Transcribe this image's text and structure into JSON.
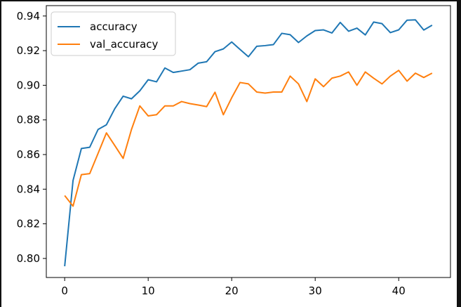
{
  "chart_data": {
    "type": "line",
    "title": "",
    "xlabel": "",
    "ylabel": "",
    "xlim": [
      -2.2,
      46.2
    ],
    "ylim": [
      0.789,
      0.946
    ],
    "x_ticks": [
      0,
      10,
      20,
      30,
      40
    ],
    "y_ticks": [
      0.8,
      0.82,
      0.84,
      0.86,
      0.88,
      0.9,
      0.92,
      0.94
    ],
    "y_tick_labels": [
      "0.80",
      "0.82",
      "0.84",
      "0.86",
      "0.88",
      "0.90",
      "0.92",
      "0.94"
    ],
    "grid": false,
    "legend_position": "upper-left",
    "x": [
      0,
      1,
      2,
      3,
      4,
      5,
      6,
      7,
      8,
      9,
      10,
      11,
      12,
      13,
      14,
      15,
      16,
      17,
      18,
      19,
      20,
      21,
      22,
      23,
      24,
      25,
      26,
      27,
      28,
      29,
      30,
      31,
      32,
      33,
      34,
      35,
      36,
      37,
      38,
      39,
      40,
      41,
      42,
      43,
      44
    ],
    "series": [
      {
        "name": "accuracy",
        "color": "#1f77b4",
        "values": [
          0.7955,
          0.845,
          0.8635,
          0.8642,
          0.8745,
          0.8772,
          0.8865,
          0.8937,
          0.8922,
          0.8968,
          0.9032,
          0.902,
          0.91,
          0.9074,
          0.9082,
          0.909,
          0.9128,
          0.9136,
          0.9194,
          0.921,
          0.925,
          0.9207,
          0.9165,
          0.9225,
          0.9229,
          0.9235,
          0.93,
          0.9292,
          0.9247,
          0.9285,
          0.9316,
          0.932,
          0.9302,
          0.9363,
          0.9312,
          0.933,
          0.9291,
          0.9365,
          0.9356,
          0.9304,
          0.932,
          0.9376,
          0.9378,
          0.9319,
          0.9347
        ]
      },
      {
        "name": "val_accuracy",
        "color": "#ff7f0e",
        "values": [
          0.8363,
          0.8302,
          0.8484,
          0.849,
          0.8607,
          0.8725,
          0.8652,
          0.8578,
          0.8745,
          0.8881,
          0.8823,
          0.883,
          0.8881,
          0.8881,
          0.8906,
          0.8894,
          0.8886,
          0.8877,
          0.896,
          0.883,
          0.8928,
          0.9016,
          0.9008,
          0.8961,
          0.8955,
          0.8961,
          0.8961,
          0.9053,
          0.9008,
          0.8906,
          0.9037,
          0.8992,
          0.9041,
          0.9053,
          0.9077,
          0.9,
          0.9077,
          0.9041,
          0.9008,
          0.9053,
          0.9086,
          0.9024,
          0.907,
          0.9045,
          0.907
        ]
      }
    ]
  }
}
